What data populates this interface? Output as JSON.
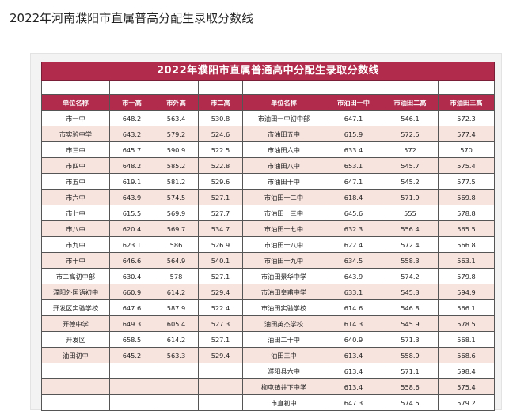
{
  "page_title": "2022年河南濮阳市直属普高分配生录取分数线",
  "table": {
    "banner": "2022年濮阳市直属普通高中分配生录取分数线",
    "headers": [
      "单位名称",
      "市一高",
      "市外高",
      "市二高",
      "单位名称",
      "市油田一中",
      "市油田二高",
      "市油田三高"
    ],
    "rows": [
      [
        "市一中",
        "648.2",
        "563.4",
        "530.8",
        "市油田一中初中部",
        "647.1",
        "546.1",
        "572.3"
      ],
      [
        "市实验中学",
        "643.2",
        "579.2",
        "524.6",
        "市油田五中",
        "615.9",
        "572.5",
        "577.4"
      ],
      [
        "市三中",
        "645.7",
        "590.9",
        "522.5",
        "市油田六中",
        "633.4",
        "572",
        "570"
      ],
      [
        "市四中",
        "648.2",
        "585.2",
        "522.8",
        "市油田八中",
        "653.1",
        "545.7",
        "575.4"
      ],
      [
        "市五中",
        "619.1",
        "581.2",
        "529.6",
        "市油田十中",
        "647.1",
        "545.2",
        "577.5"
      ],
      [
        "市六中",
        "643.9",
        "574.5",
        "527.1",
        "市油田十二中",
        "618.4",
        "571.9",
        "569.8"
      ],
      [
        "市七中",
        "615.5",
        "569.9",
        "527.7",
        "市油田十三中",
        "645.6",
        "555",
        "578.8"
      ],
      [
        "市八中",
        "620.4",
        "569.7",
        "534.7",
        "市油田十七中",
        "632.3",
        "556.4",
        "565.5"
      ],
      [
        "市九中",
        "623.1",
        "586",
        "526.9",
        "市油田十八中",
        "622.4",
        "572.4",
        "566.8"
      ],
      [
        "市十中",
        "646.6",
        "564.9",
        "540.1",
        "市油田十九中",
        "634.5",
        "558.3",
        "563.1"
      ],
      [
        "市二高初中部",
        "630.4",
        "578",
        "527.1",
        "市油田景华中学",
        "643.9",
        "574.2",
        "579.8"
      ],
      [
        "濮阳外国语初中",
        "660.9",
        "614.2",
        "529.4",
        "市油田皇甫中学",
        "633.1",
        "545.3",
        "594.9"
      ],
      [
        "开发区实验学校",
        "647.6",
        "587.9",
        "522.4",
        "市油田实验学校",
        "614.6",
        "546.8",
        "566.1"
      ],
      [
        "开德中学",
        "649.3",
        "605.4",
        "527.3",
        "油田英杰学校",
        "614.3",
        "545.9",
        "578.5"
      ],
      [
        "开发区",
        "658.5",
        "614.2",
        "527.1",
        "油田二十中",
        "640.9",
        "571.3",
        "568.1"
      ],
      [
        "油田初中",
        "645.2",
        "563.3",
        "529.4",
        "油田三中",
        "613.4",
        "558.9",
        "568.6"
      ],
      [
        "",
        "",
        "",
        "",
        "濮阳县六中",
        "613.4",
        "571.1",
        "598.4"
      ],
      [
        "",
        "",
        "",
        "",
        "柳屯镇井下中学",
        "613.4",
        "558.6",
        "575.4"
      ],
      [
        "",
        "",
        "",
        "",
        "市直初中",
        "647.3",
        "574.5",
        "579.2"
      ]
    ]
  },
  "colors": {
    "header_bg": "#b12b4d",
    "row_alt_bg": "#f8e4df"
  }
}
